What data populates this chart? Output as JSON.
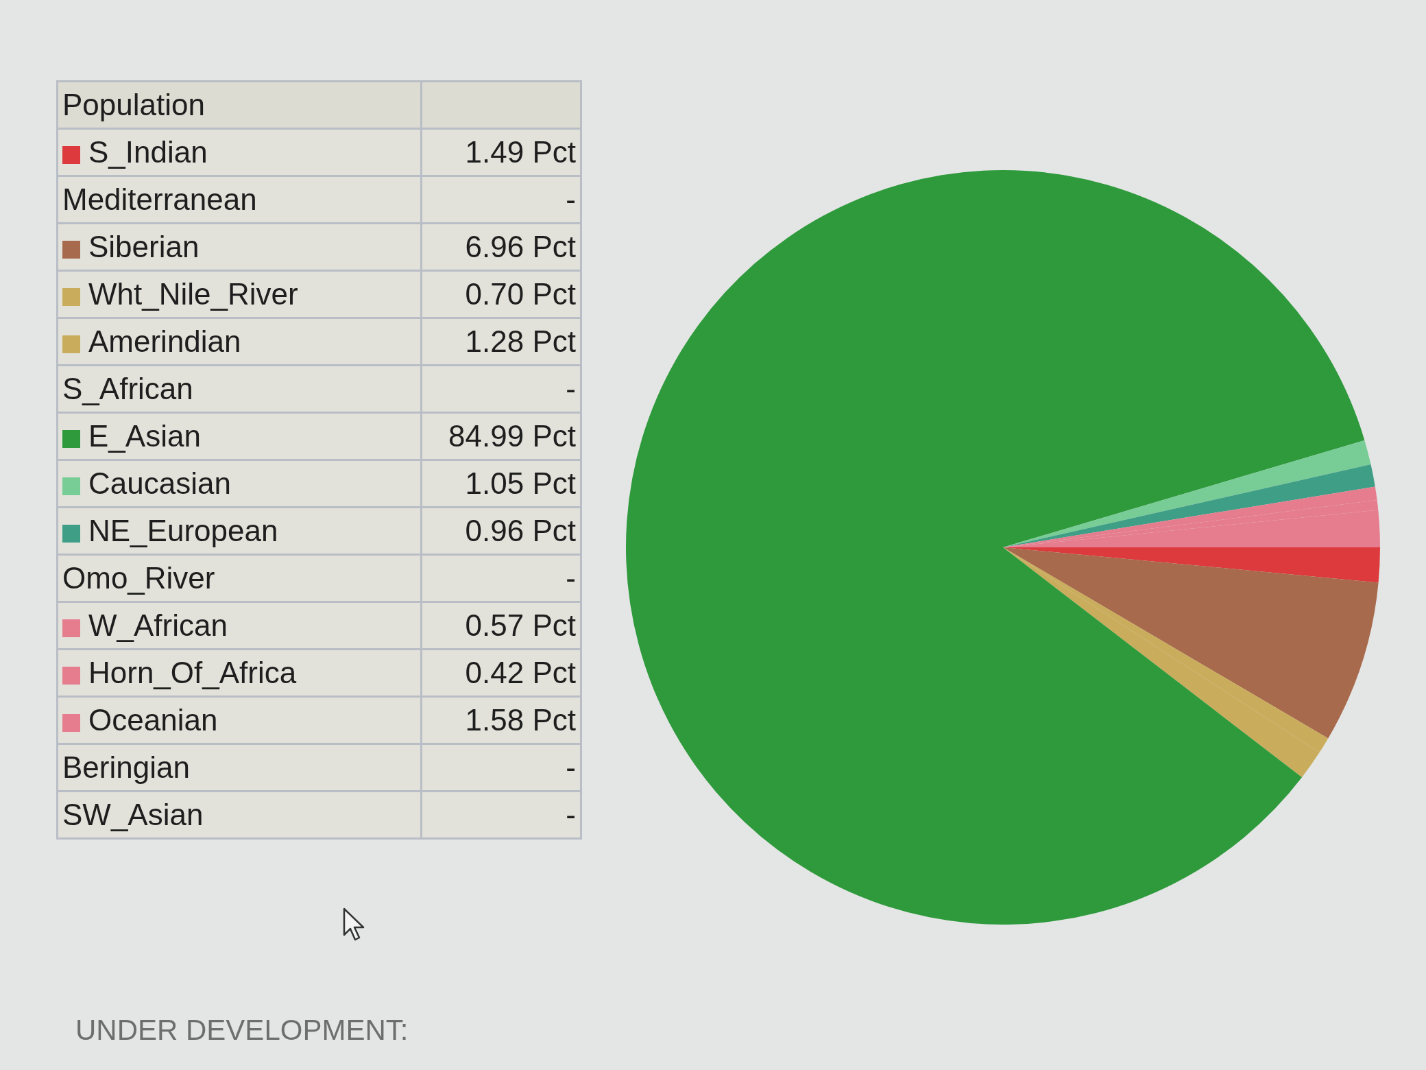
{
  "chart_data": {
    "type": "pie",
    "legend_title": "Population",
    "legend": "left",
    "categories": [
      "S_Indian",
      "Mediterranean",
      "Siberian",
      "Wht_Nile_River",
      "Amerindian",
      "S_African",
      "E_Asian",
      "Caucasian",
      "NE_European",
      "Omo_River",
      "W_African",
      "Horn_Of_Africa",
      "Oceanian",
      "Beringian",
      "SW_Asian"
    ],
    "values": [
      1.49,
      null,
      6.96,
      0.7,
      1.28,
      null,
      84.99,
      1.05,
      0.96,
      null,
      0.57,
      0.42,
      1.58,
      null,
      null
    ],
    "value_labels": [
      "1.49 Pct",
      "-",
      "6.96 Pct",
      "0.70 Pct",
      "1.28 Pct",
      "-",
      "84.99 Pct",
      "1.05 Pct",
      "0.96 Pct",
      "-",
      "0.57 Pct",
      "0.42 Pct",
      "1.58 Pct",
      "-",
      "-"
    ],
    "colors": [
      "#dc3a3c",
      null,
      "#a86a4c",
      "#c9ad5c",
      "#c9ad5c",
      null,
      "#2f9a3c",
      "#78cc96",
      "#3f9e86",
      null,
      "#e67d8f",
      "#e67d8f",
      "#e67d8f",
      null,
      null
    ],
    "annotations": [
      "UNDER DEVELOPMENT:"
    ]
  }
}
